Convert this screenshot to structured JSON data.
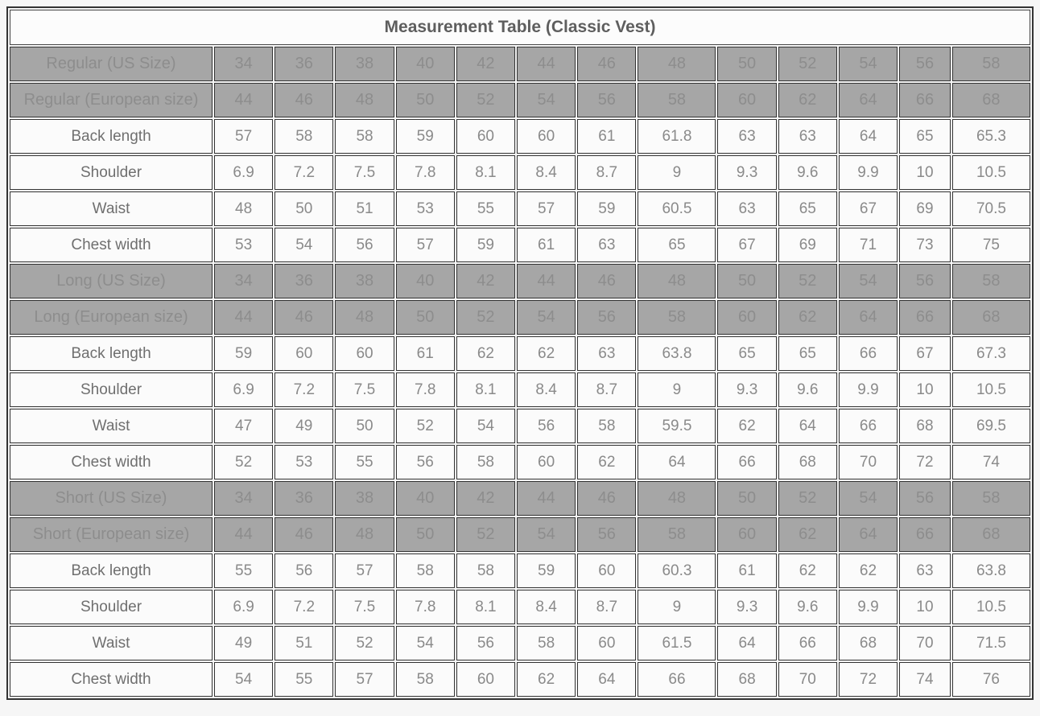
{
  "chart_data": {
    "type": "table",
    "title": "Measurement Table (Classic Vest)",
    "columns_per_row": 13,
    "rows": [
      {
        "kind": "size",
        "label": "Regular (US Size)",
        "values": [
          "34",
          "36",
          "38",
          "40",
          "42",
          "44",
          "46",
          "48",
          "50",
          "52",
          "54",
          "56",
          "58"
        ]
      },
      {
        "kind": "size",
        "label": "Regular (European size)",
        "values": [
          "44",
          "46",
          "48",
          "50",
          "52",
          "54",
          "56",
          "58",
          "60",
          "62",
          "64",
          "66",
          "68"
        ]
      },
      {
        "kind": "data",
        "label": "Back length",
        "values": [
          "57",
          "58",
          "58",
          "59",
          "60",
          "60",
          "61",
          "61.8",
          "63",
          "63",
          "64",
          "65",
          "65.3"
        ]
      },
      {
        "kind": "data",
        "label": "Shoulder",
        "values": [
          "6.9",
          "7.2",
          "7.5",
          "7.8",
          "8.1",
          "8.4",
          "8.7",
          "9",
          "9.3",
          "9.6",
          "9.9",
          "10",
          "10.5"
        ]
      },
      {
        "kind": "data",
        "label": "Waist",
        "values": [
          "48",
          "50",
          "51",
          "53",
          "55",
          "57",
          "59",
          "60.5",
          "63",
          "65",
          "67",
          "69",
          "70.5"
        ]
      },
      {
        "kind": "data",
        "label": "Chest width",
        "values": [
          "53",
          "54",
          "56",
          "57",
          "59",
          "61",
          "63",
          "65",
          "67",
          "69",
          "71",
          "73",
          "75"
        ]
      },
      {
        "kind": "size",
        "label": "Long (US Size)",
        "values": [
          "34",
          "36",
          "38",
          "40",
          "42",
          "44",
          "46",
          "48",
          "50",
          "52",
          "54",
          "56",
          "58"
        ]
      },
      {
        "kind": "size",
        "label": "Long (European size)",
        "values": [
          "44",
          "46",
          "48",
          "50",
          "52",
          "54",
          "56",
          "58",
          "60",
          "62",
          "64",
          "66",
          "68"
        ]
      },
      {
        "kind": "data",
        "label": "Back length",
        "values": [
          "59",
          "60",
          "60",
          "61",
          "62",
          "62",
          "63",
          "63.8",
          "65",
          "65",
          "66",
          "67",
          "67.3"
        ]
      },
      {
        "kind": "data",
        "label": "Shoulder",
        "values": [
          "6.9",
          "7.2",
          "7.5",
          "7.8",
          "8.1",
          "8.4",
          "8.7",
          "9",
          "9.3",
          "9.6",
          "9.9",
          "10",
          "10.5"
        ]
      },
      {
        "kind": "data",
        "label": "Waist",
        "values": [
          "47",
          "49",
          "50",
          "52",
          "54",
          "56",
          "58",
          "59.5",
          "62",
          "64",
          "66",
          "68",
          "69.5"
        ]
      },
      {
        "kind": "data",
        "label": "Chest width",
        "values": [
          "52",
          "53",
          "55",
          "56",
          "58",
          "60",
          "62",
          "64",
          "66",
          "68",
          "70",
          "72",
          "74"
        ]
      },
      {
        "kind": "size",
        "label": "Short (US Size)",
        "values": [
          "34",
          "36",
          "38",
          "40",
          "42",
          "44",
          "46",
          "48",
          "50",
          "52",
          "54",
          "56",
          "58"
        ]
      },
      {
        "kind": "size",
        "label": "Short (European size)",
        "values": [
          "44",
          "46",
          "48",
          "50",
          "52",
          "54",
          "56",
          "58",
          "60",
          "62",
          "64",
          "66",
          "68"
        ]
      },
      {
        "kind": "data",
        "label": "Back length",
        "values": [
          "55",
          "56",
          "57",
          "58",
          "58",
          "59",
          "60",
          "60.3",
          "61",
          "62",
          "62",
          "63",
          "63.8"
        ]
      },
      {
        "kind": "data",
        "label": "Shoulder",
        "values": [
          "6.9",
          "7.2",
          "7.5",
          "7.8",
          "8.1",
          "8.4",
          "8.7",
          "9",
          "9.3",
          "9.6",
          "9.9",
          "10",
          "10.5"
        ]
      },
      {
        "kind": "data",
        "label": "Waist",
        "values": [
          "49",
          "51",
          "52",
          "54",
          "56",
          "58",
          "60",
          "61.5",
          "64",
          "66",
          "68",
          "70",
          "71.5"
        ]
      },
      {
        "kind": "data",
        "label": "Chest width",
        "values": [
          "54",
          "55",
          "57",
          "58",
          "60",
          "62",
          "64",
          "66",
          "68",
          "70",
          "72",
          "74",
          "76"
        ]
      }
    ],
    "colors": {
      "size_row_bg": "#a6a6a6",
      "size_row_text": "#8d8d8d",
      "data_row_bg": "#fbfbfb",
      "data_label_text": "#6f6f6f",
      "data_value_text": "#8a8a8a",
      "border": "#333333",
      "title_bg": "#fcfcfc",
      "title_text": "#5e5e5e",
      "page_bg": "#f6f6f6"
    }
  }
}
